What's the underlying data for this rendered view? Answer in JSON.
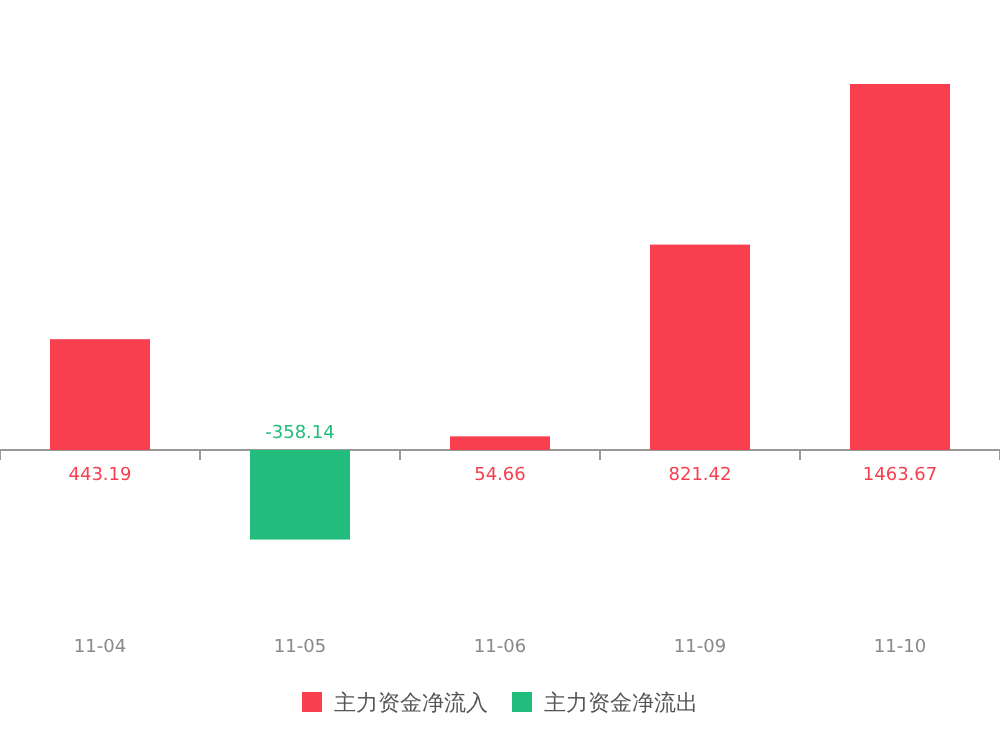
{
  "chart_data": {
    "type": "bar",
    "categories": [
      "11-04",
      "11-05",
      "11-06",
      "11-09",
      "11-10"
    ],
    "series": [
      {
        "name": "主力资金净流入",
        "color": "#f83f4f",
        "values": [
          443.19,
          null,
          54.66,
          821.42,
          1463.67
        ]
      },
      {
        "name": "主力资金净流出",
        "color": "#22bd7c",
        "values": [
          null,
          -358.14,
          null,
          null,
          null
        ]
      }
    ],
    "data_labels": true,
    "legend": "bottom"
  }
}
